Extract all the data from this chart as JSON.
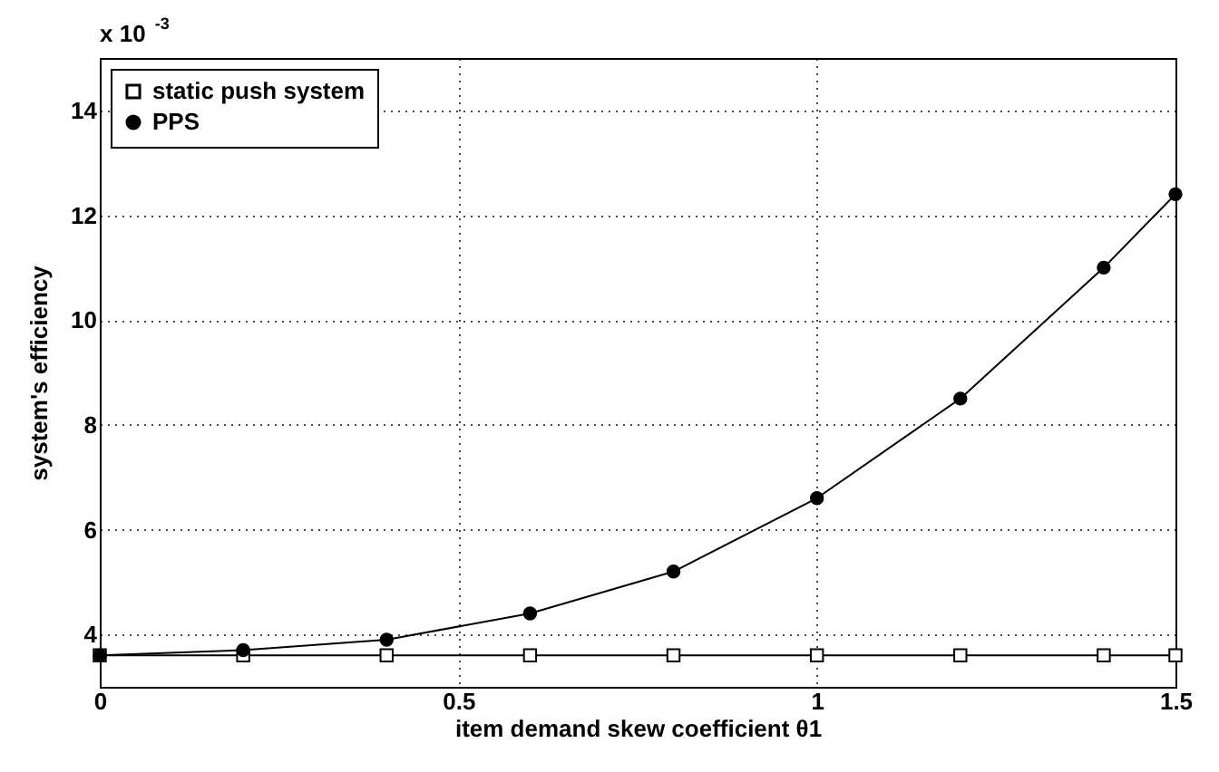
{
  "chart_data": {
    "type": "line",
    "xlabel": "item demand skew coefficient θ1",
    "ylabel": "system's efficiency",
    "annotations": [
      "x 10$^{-3}$"
    ],
    "x": [
      0,
      0.2,
      0.4,
      0.6,
      0.8,
      1.0,
      1.2,
      1.4,
      1.5
    ],
    "series": [
      {
        "name": "static push system",
        "color": "#000000",
        "marker": "square",
        "values": [
          3.6,
          3.6,
          3.6,
          3.6,
          3.6,
          3.6,
          3.6,
          3.6,
          3.6
        ]
      },
      {
        "name": "PPS",
        "color": "#000000",
        "marker": "circle",
        "values": [
          3.6,
          3.7,
          3.9,
          4.4,
          5.2,
          6.6,
          8.5,
          11.0,
          12.4
        ]
      }
    ],
    "xlim": [
      0,
      1.5
    ],
    "xticks": [
      0,
      0.5,
      1,
      1.5
    ],
    "ylim": [
      3,
      15
    ],
    "yticks": [
      4,
      6,
      8,
      10,
      12,
      14
    ],
    "grid": true,
    "legend": "top left",
    "line_style": "solid"
  }
}
